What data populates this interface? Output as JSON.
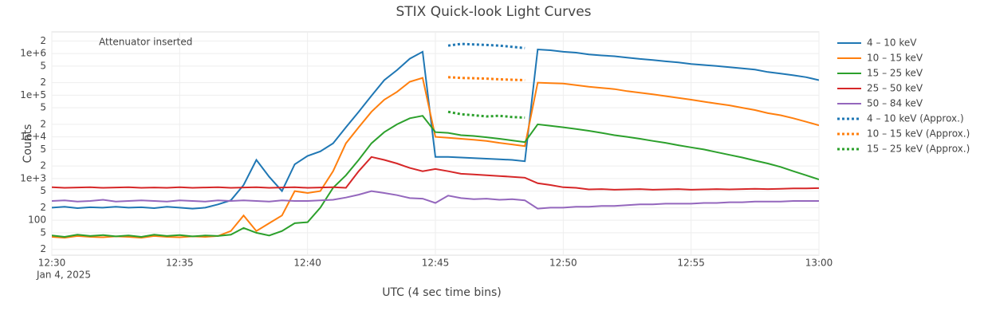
{
  "chart_data": {
    "type": "line",
    "title": "STIX Quick-look Light Curves",
    "xlabel": "UTC (4 sec time bins)",
    "ylabel": "Counts",
    "annotation": "Attenuator inserted",
    "x_date_label": "Jan 4, 2025",
    "yscale": "log",
    "grid": true,
    "xlim": [
      "2025-01-04 12:30:00",
      "2025-01-04 13:00:00"
    ],
    "xticks": [
      {
        "value": "2025-01-04 12:30:00",
        "label": "12:30"
      },
      {
        "value": "2025-01-04 12:35:00",
        "label": "12:35"
      },
      {
        "value": "2025-01-04 12:40:00",
        "label": "12:40"
      },
      {
        "value": "2025-01-04 12:45:00",
        "label": "12:45"
      },
      {
        "value": "2025-01-04 12:50:00",
        "label": "12:50"
      },
      {
        "value": "2025-01-04 12:55:00",
        "label": "12:55"
      },
      {
        "value": "2025-01-04 13:00:00",
        "label": "13:00"
      }
    ],
    "ylim": [
      14.5,
      3300000
    ],
    "yticks": [
      {
        "value": 20,
        "label": "2"
      },
      {
        "value": 50,
        "label": "5"
      },
      100,
      {
        "value": 200,
        "label": "2"
      },
      {
        "value": 500,
        "label": "5"
      },
      {
        "value": 1000,
        "label": "1e+3"
      },
      {
        "value": 2000,
        "label": "2"
      },
      {
        "value": 5000,
        "label": "5"
      },
      {
        "value": 10000,
        "label": "1e+4"
      },
      {
        "value": 20000,
        "label": "2"
      },
      {
        "value": 50000,
        "label": "5"
      },
      {
        "value": 100000,
        "label": "1e+5"
      },
      {
        "value": 200000,
        "label": "2"
      },
      {
        "value": 500000,
        "label": "5"
      },
      {
        "value": 1000000,
        "label": "1e+6"
      },
      {
        "value": 2000000,
        "label": "2"
      }
    ],
    "x": [
      "2025-01-04 12:30:00",
      "2025-01-04 12:30:30",
      "2025-01-04 12:31:00",
      "2025-01-04 12:31:30",
      "2025-01-04 12:32:00",
      "2025-01-04 12:32:30",
      "2025-01-04 12:33:00",
      "2025-01-04 12:33:30",
      "2025-01-04 12:34:00",
      "2025-01-04 12:34:30",
      "2025-01-04 12:35:00",
      "2025-01-04 12:35:30",
      "2025-01-04 12:36:00",
      "2025-01-04 12:36:30",
      "2025-01-04 12:37:00",
      "2025-01-04 12:37:30",
      "2025-01-04 12:38:00",
      "2025-01-04 12:38:30",
      "2025-01-04 12:39:00",
      "2025-01-04 12:39:30",
      "2025-01-04 12:40:00",
      "2025-01-04 12:40:30",
      "2025-01-04 12:41:00",
      "2025-01-04 12:41:30",
      "2025-01-04 12:42:00",
      "2025-01-04 12:42:30",
      "2025-01-04 12:43:00",
      "2025-01-04 12:43:30",
      "2025-01-04 12:44:00",
      "2025-01-04 12:44:30",
      "2025-01-04 12:45:00",
      "2025-01-04 12:45:30",
      "2025-01-04 12:46:00",
      "2025-01-04 12:46:30",
      "2025-01-04 12:47:00",
      "2025-01-04 12:47:30",
      "2025-01-04 12:48:00",
      "2025-01-04 12:48:30",
      "2025-01-04 12:49:00",
      "2025-01-04 12:49:30",
      "2025-01-04 12:50:00",
      "2025-01-04 12:50:30",
      "2025-01-04 12:51:00",
      "2025-01-04 12:51:30",
      "2025-01-04 12:52:00",
      "2025-01-04 12:52:30",
      "2025-01-04 12:53:00",
      "2025-01-04 12:53:30",
      "2025-01-04 12:54:00",
      "2025-01-04 12:54:30",
      "2025-01-04 12:55:00",
      "2025-01-04 12:55:30",
      "2025-01-04 12:56:00",
      "2025-01-04 12:56:30",
      "2025-01-04 12:57:00",
      "2025-01-04 12:57:30",
      "2025-01-04 12:58:00",
      "2025-01-04 12:58:30",
      "2025-01-04 12:59:00",
      "2025-01-04 12:59:30",
      "2025-01-04 13:00:00"
    ],
    "series": [
      {
        "name": "4 – 10 keV",
        "color": "#1f77b4",
        "dash": "solid",
        "values": [
          200,
          210,
          195,
          205,
          200,
          210,
          200,
          205,
          195,
          210,
          200,
          190,
          200,
          240,
          300,
          700,
          2800,
          1100,
          500,
          2200,
          3500,
          4500,
          7000,
          17000,
          40000,
          97000,
          230000,
          400000,
          750000,
          1100000,
          3300,
          3300,
          3200,
          3100,
          3000,
          2900,
          2800,
          2600,
          1250000,
          1200000,
          1100000,
          1050000,
          950000,
          900000,
          860000,
          800000,
          740000,
          700000,
          650000,
          610000,
          560000,
          530000,
          500000,
          470000,
          440000,
          410000,
          360000,
          330000,
          300000,
          270000,
          230000
        ]
      },
      {
        "name": "10 – 15 keV",
        "color": "#ff7f0e",
        "dash": "solid",
        "values": [
          40,
          38,
          42,
          40,
          39,
          41,
          40,
          38,
          42,
          40,
          39,
          41,
          40,
          42,
          55,
          130,
          55,
          85,
          130,
          500,
          450,
          500,
          1500,
          7000,
          17000,
          40000,
          78000,
          120000,
          210000,
          260000,
          10000,
          9500,
          9000,
          8500,
          8000,
          7200,
          6600,
          6000,
          200000,
          195000,
          190000,
          175000,
          160000,
          150000,
          140000,
          125000,
          115000,
          105000,
          95000,
          86000,
          78000,
          70000,
          63000,
          57000,
          50000,
          44000,
          37000,
          33000,
          28000,
          23000,
          19000
        ]
      },
      {
        "name": "15 – 25 keV",
        "color": "#2ca02c",
        "dash": "solid",
        "values": [
          43,
          40,
          45,
          42,
          44,
          41,
          43,
          40,
          45,
          42,
          44,
          41,
          43,
          42,
          45,
          65,
          50,
          43,
          55,
          85,
          90,
          200,
          600,
          1200,
          2800,
          7000,
          13000,
          20000,
          28000,
          32000,
          13000,
          12500,
          11000,
          10500,
          9800,
          9000,
          8200,
          7500,
          20000,
          18500,
          17000,
          15500,
          14000,
          12500,
          11000,
          10000,
          9000,
          8000,
          7200,
          6300,
          5600,
          5000,
          4300,
          3700,
          3200,
          2700,
          2300,
          1900,
          1500,
          1200,
          950
        ]
      },
      {
        "name": "25 – 50 keV",
        "color": "#d62728",
        "dash": "solid",
        "values": [
          620,
          600,
          610,
          620,
          600,
          610,
          620,
          600,
          610,
          600,
          620,
          600,
          610,
          620,
          600,
          610,
          620,
          600,
          610,
          620,
          600,
          610,
          620,
          600,
          1500,
          3300,
          2800,
          2300,
          1800,
          1500,
          1700,
          1500,
          1300,
          1250,
          1200,
          1150,
          1100,
          1050,
          770,
          700,
          620,
          600,
          550,
          560,
          540,
          550,
          560,
          540,
          550,
          560,
          540,
          550,
          560,
          550,
          560,
          570,
          560,
          570,
          580,
          580,
          590
        ]
      },
      {
        "name": "50 – 84 keV",
        "color": "#9467bd",
        "dash": "solid",
        "values": [
          290,
          300,
          280,
          290,
          310,
          280,
          290,
          300,
          290,
          280,
          300,
          290,
          280,
          300,
          290,
          300,
          290,
          280,
          300,
          290,
          290,
          300,
          310,
          350,
          410,
          500,
          450,
          400,
          340,
          330,
          260,
          390,
          340,
          320,
          330,
          310,
          320,
          300,
          190,
          200,
          200,
          210,
          210,
          220,
          220,
          230,
          240,
          240,
          250,
          250,
          250,
          260,
          260,
          270,
          270,
          280,
          280,
          280,
          290,
          290,
          290
        ]
      },
      {
        "name": "4 – 10 keV (Approx.)",
        "color": "#1f77b4",
        "dash": "dot",
        "x": [
          "2025-01-04 12:45:30",
          "2025-01-04 12:46:00",
          "2025-01-04 12:46:30",
          "2025-01-04 12:47:00",
          "2025-01-04 12:47:30",
          "2025-01-04 12:48:00",
          "2025-01-04 12:48:30"
        ],
        "values": [
          1550000,
          1700000,
          1650000,
          1600000,
          1550000,
          1450000,
          1350000
        ]
      },
      {
        "name": "10 – 15 keV (Approx.)",
        "color": "#ff7f0e",
        "dash": "dot",
        "x": [
          "2025-01-04 12:45:30",
          "2025-01-04 12:46:00",
          "2025-01-04 12:46:30",
          "2025-01-04 12:47:00",
          "2025-01-04 12:47:30",
          "2025-01-04 12:48:00",
          "2025-01-04 12:48:30"
        ],
        "values": [
          270000,
          260000,
          255000,
          250000,
          240000,
          235000,
          230000
        ]
      },
      {
        "name": "15 – 25 keV (Approx.)",
        "color": "#2ca02c",
        "dash": "dot",
        "x": [
          "2025-01-04 12:45:30",
          "2025-01-04 12:46:00",
          "2025-01-04 12:46:30",
          "2025-01-04 12:47:00",
          "2025-01-04 12:47:30",
          "2025-01-04 12:48:00",
          "2025-01-04 12:48:30"
        ],
        "values": [
          40000,
          35000,
          33000,
          31000,
          32000,
          30000,
          29000
        ]
      }
    ]
  }
}
